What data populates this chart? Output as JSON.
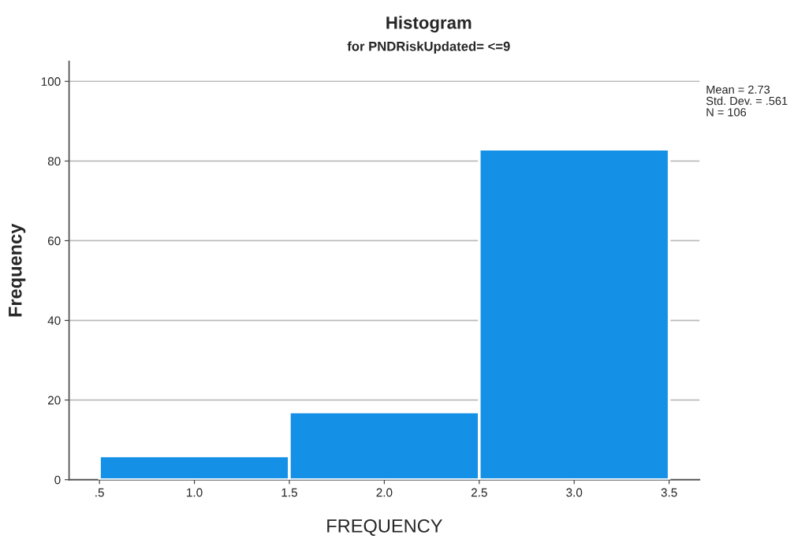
{
  "chart_data": {
    "type": "histogram",
    "title": "Histogram",
    "subtitle": "for PNDRiskUpdated= <=9",
    "xlabel": "FREQUENCY",
    "ylabel": "Frequency",
    "bins": [
      0.5,
      1.5,
      2.5,
      3.5
    ],
    "values": [
      6,
      17,
      83
    ],
    "color": "#1491e6",
    "xlim": [
      0.34,
      3.66
    ],
    "xticks": [
      {
        "value": 0.5,
        "label": ".5"
      },
      {
        "value": 1.0,
        "label": "1.0"
      },
      {
        "value": 1.5,
        "label": "1.5"
      },
      {
        "value": 2.0,
        "label": "2.0"
      },
      {
        "value": 2.5,
        "label": "2.5"
      },
      {
        "value": 3.0,
        "label": "3.0"
      },
      {
        "value": 3.5,
        "label": "3.5"
      }
    ],
    "ylim": [
      0,
      105
    ],
    "yticks": [
      0,
      20,
      40,
      60,
      80,
      100
    ],
    "grid": "y",
    "legend": false,
    "annotations": [
      "Mean = 2.73",
      "Std. Dev. = .561",
      "N = 106"
    ]
  }
}
